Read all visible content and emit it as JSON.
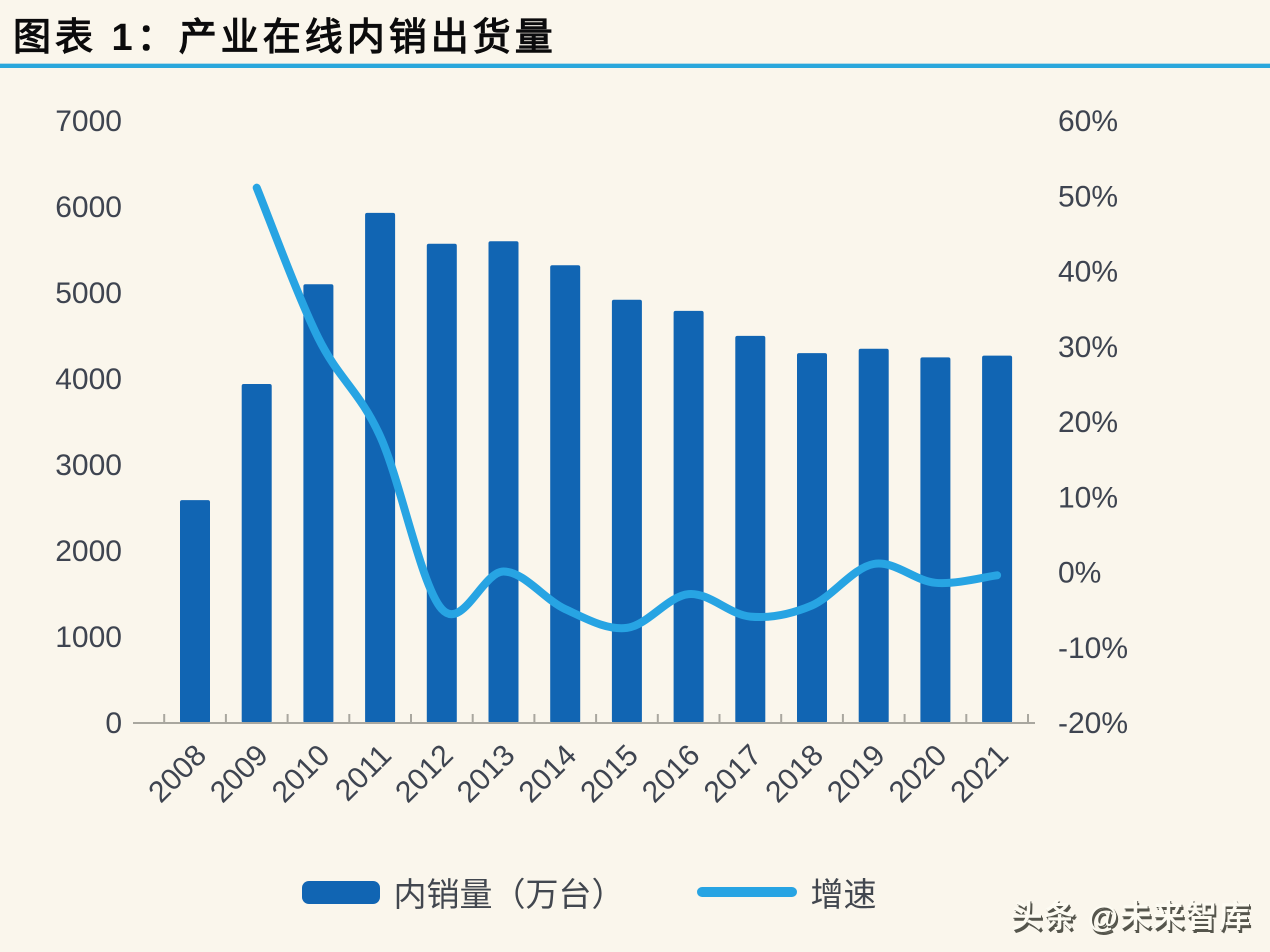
{
  "header": {
    "title": "图表 1：产业在线内销出货量"
  },
  "watermark": {
    "text": "头条 @未来智库"
  },
  "legend": {
    "bar_label": "内销量（万台）",
    "line_label": "增速"
  },
  "colors": {
    "background": "#faf6ec",
    "bar": "#1165b3",
    "line": "#27a4e3",
    "title_rule": "#2aa7dc",
    "axis_text": "#3e4450",
    "axis_line": "#a9a79f",
    "title_text": "#0b0b0c",
    "legend_text": "#42474f",
    "watermark_text": "#fdfbf2",
    "watermark_shadow": "#55554c"
  },
  "chart_data": {
    "type": "bar",
    "subtype": "bar-line-combo",
    "title": "产业在线内销出货量",
    "categories": [
      "2008",
      "2009",
      "2010",
      "2011",
      "2012",
      "2013",
      "2014",
      "2015",
      "2016",
      "2017",
      "2018",
      "2019",
      "2020",
      "2021"
    ],
    "series": [
      {
        "name": "内销量（万台）",
        "type": "bar",
        "axis": "left",
        "values": [
          2580,
          3930,
          5090,
          5920,
          5560,
          5590,
          5310,
          4910,
          4780,
          4490,
          4290,
          4340,
          4240,
          4260
        ]
      },
      {
        "name": "增速",
        "type": "line",
        "axis": "right",
        "values": [
          null,
          51,
          31,
          18,
          -5,
          0,
          -5,
          -7.5,
          -3,
          -6,
          -4.5,
          1,
          -1.5,
          -0.5
        ]
      }
    ],
    "left_axis": {
      "min": 0,
      "max": 7000,
      "tick_step": 1000,
      "tick_labels": [
        "7000",
        "6000",
        "5000",
        "4000",
        "3000",
        "2000",
        "1000",
        "0"
      ]
    },
    "right_axis": {
      "min": -20,
      "max": 60,
      "tick_step": 10,
      "tick_labels": [
        "60%",
        "50%",
        "40%",
        "30%",
        "20%",
        "10%",
        "0%",
        "-10%",
        "-20%"
      ]
    },
    "grid": false,
    "legend_position": "bottom",
    "x_label_rotation": -45
  }
}
